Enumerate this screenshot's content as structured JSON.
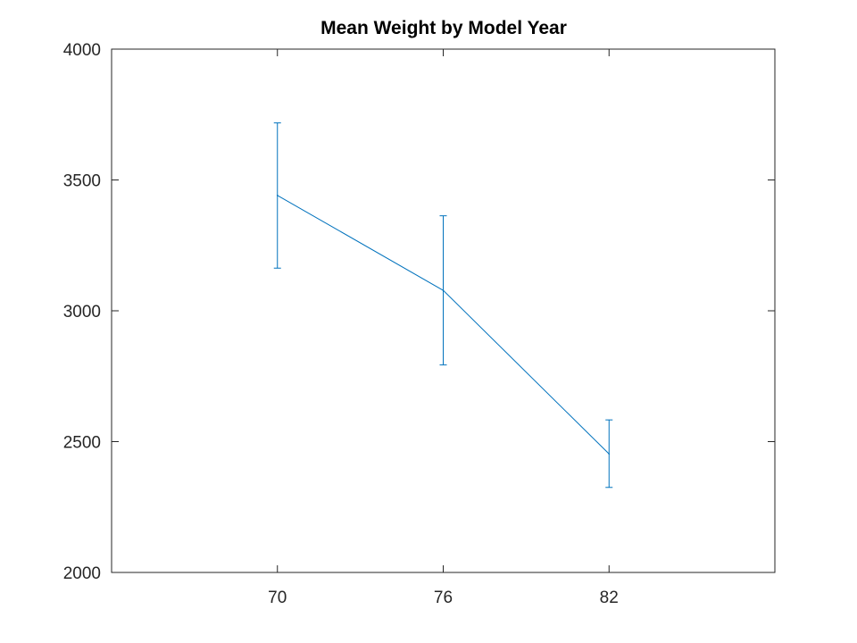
{
  "chart_data": {
    "type": "line",
    "title": "Mean Weight by Model Year",
    "xlabel": "",
    "ylabel": "",
    "categories": [
      "70",
      "76",
      "82"
    ],
    "series": [
      {
        "values": [
          3441,
          3078,
          2453
        ],
        "error_low": [
          3163,
          2793,
          2325
        ],
        "error_high": [
          3718,
          3363,
          2583
        ],
        "color": "#0072BD"
      }
    ],
    "ylim": [
      2000,
      4000
    ],
    "yticks": [
      2000,
      2500,
      3000,
      3500,
      4000
    ],
    "grid": false,
    "legend": "none"
  }
}
